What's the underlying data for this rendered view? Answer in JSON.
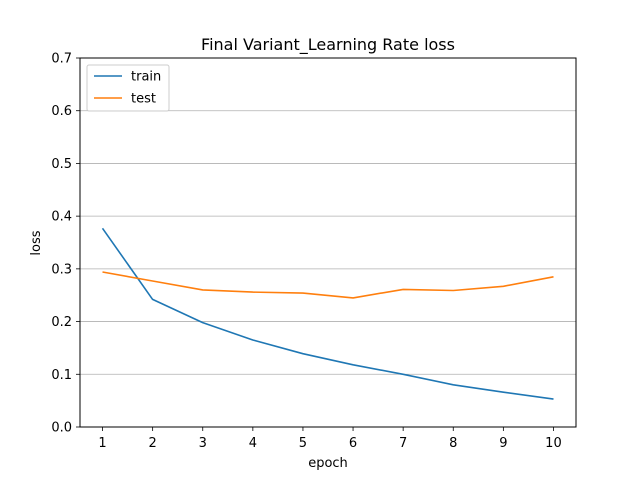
{
  "chart_data": {
    "type": "line",
    "title": "Final Variant_Learning Rate loss",
    "xlabel": "epoch",
    "ylabel": "loss",
    "x": [
      1,
      2,
      3,
      4,
      5,
      6,
      7,
      8,
      9,
      10
    ],
    "xticks": [
      1,
      2,
      3,
      4,
      5,
      6,
      7,
      8,
      9,
      10
    ],
    "yticks": [
      "0.0",
      "0.1",
      "0.2",
      "0.3",
      "0.4",
      "0.5",
      "0.6",
      "0.7"
    ],
    "xlim": [
      0.55,
      10.45
    ],
    "ylim": [
      0,
      0.7
    ],
    "grid": "horizontal",
    "legend_position": "top-left",
    "series": [
      {
        "name": "train",
        "color": "#1f77b4",
        "values": [
          0.377,
          0.242,
          0.198,
          0.165,
          0.139,
          0.118,
          0.1,
          0.08,
          0.066,
          0.053
        ]
      },
      {
        "name": "test",
        "color": "#ff7f0e",
        "values": [
          0.294,
          0.277,
          0.26,
          0.256,
          0.254,
          0.245,
          0.261,
          0.259,
          0.267,
          0.285
        ]
      }
    ]
  }
}
